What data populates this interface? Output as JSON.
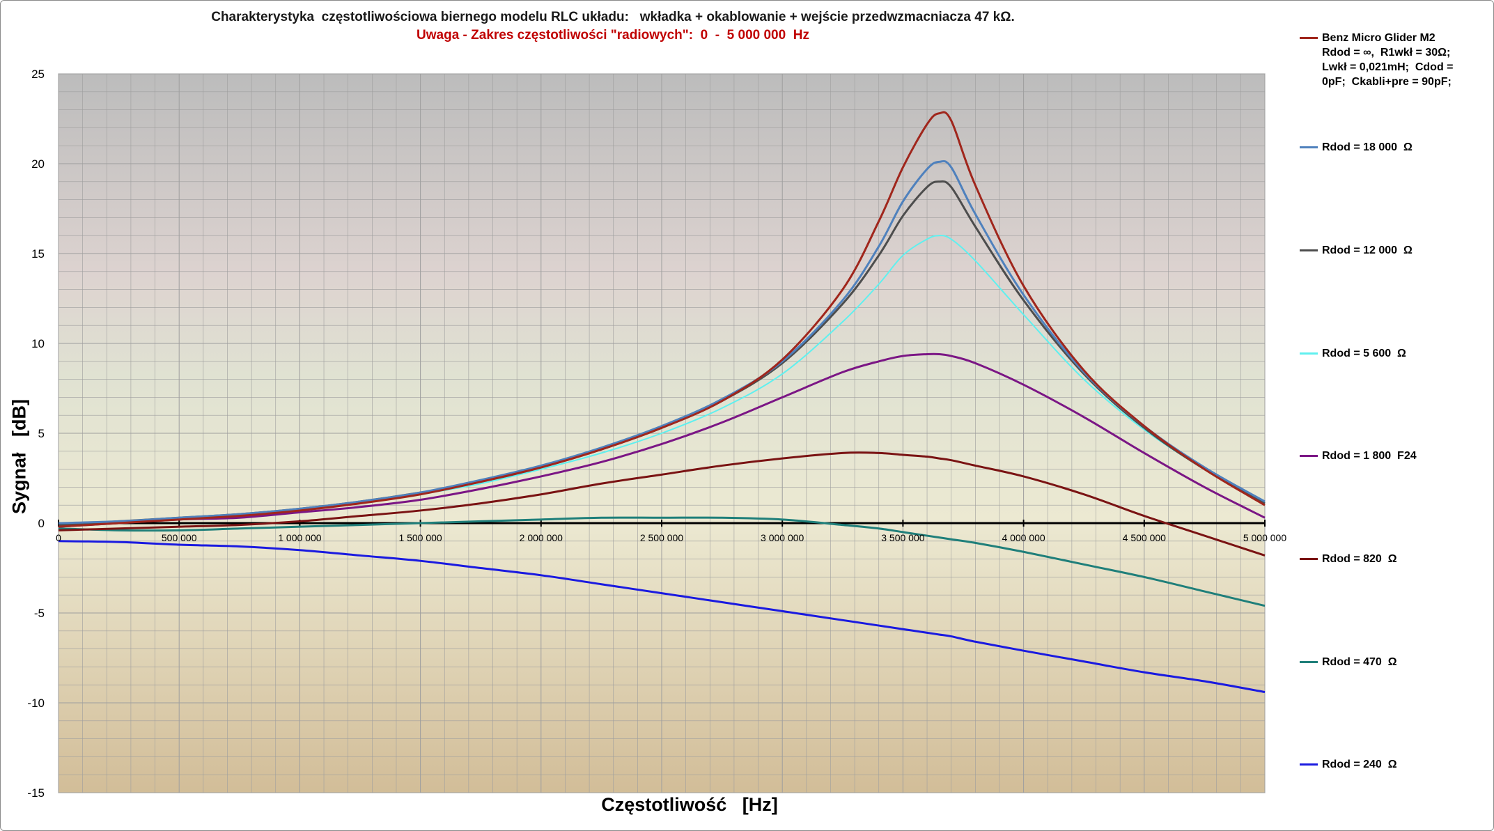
{
  "title": "Charakterystyka  częstotliwościowa biernego modelu RLC układu:   wkładka + okablowanie + wejście przedwzmacniacza 47 kΩ.",
  "subtitle": "Uwaga - Zakres częstotliwości \"radiowych\":  0  -  5 000 000  Hz",
  "chart_data": {
    "type": "line",
    "title": "Charakterystyka  częstotliwościowa biernego modelu RLC układu:   wkładka + okablowanie + wejście przedwzmacniacza 47 kΩ.",
    "subtitle": "Uwaga - Zakres częstotliwości \"radiowych\":  0  -  5 000 000  Hz",
    "xlabel": "Częstotliwość   [Hz]",
    "ylabel": "Sygnał   [dB]",
    "xlim": [
      0,
      5000000
    ],
    "ylim": [
      -15,
      25
    ],
    "x_ticks": [
      "0",
      "500 000",
      "1 000 000",
      "1 500 000",
      "2 000 000",
      "2 500 000",
      "3 000 000",
      "3 500 000",
      "4 000 000",
      "4 500 000",
      "5 000 000"
    ],
    "y_ticks": [
      "25",
      "20",
      "15",
      "10",
      "5",
      "0",
      "-5",
      "-10",
      "-15"
    ],
    "grid": true,
    "legend_position": "right",
    "x": [
      0,
      250000,
      500000,
      750000,
      1000000,
      1250000,
      1500000,
      1750000,
      2000000,
      2250000,
      2500000,
      2750000,
      3000000,
      3250000,
      3400000,
      3500000,
      3600000,
      3650000,
      3700000,
      3800000,
      4000000,
      4250000,
      4500000,
      4750000,
      5000000
    ],
    "series": [
      {
        "name": "Benz Micro Glider M2\nRdod = ∞,  R1wkł = 30Ω;\nLwkł = 0,021mH;  Cdod =\n0pF;  Ckabli+pre = 90pF;",
        "color": "#a0261c",
        "values": [
          -0.2,
          0.0,
          0.2,
          0.4,
          0.7,
          1.1,
          1.6,
          2.3,
          3.1,
          4.1,
          5.3,
          6.8,
          9.1,
          13.0,
          16.8,
          19.8,
          22.2,
          22.8,
          22.4,
          18.8,
          13.2,
          8.5,
          5.4,
          3.0,
          1.0
        ]
      },
      {
        "name": "Rdod = 18 000  Ω",
        "color": "#4f81bd",
        "values": [
          0.0,
          0.1,
          0.3,
          0.5,
          0.8,
          1.2,
          1.7,
          2.4,
          3.2,
          4.2,
          5.4,
          6.9,
          9.0,
          12.4,
          15.4,
          17.9,
          19.7,
          20.1,
          19.8,
          17.2,
          12.7,
          8.4,
          5.4,
          3.1,
          1.2
        ]
      },
      {
        "name": "Rdod = 12 000  Ω",
        "color": "#4d4d4d",
        "values": [
          -0.1,
          0.1,
          0.3,
          0.5,
          0.8,
          1.2,
          1.7,
          2.3,
          3.1,
          4.1,
          5.3,
          6.8,
          8.9,
          12.2,
          14.9,
          17.1,
          18.7,
          19.0,
          18.7,
          16.5,
          12.4,
          8.3,
          5.3,
          3.0,
          1.1
        ]
      },
      {
        "name": "Rdod = 5 600  Ω",
        "color": "#5ff0ef",
        "values": [
          -0.1,
          0.1,
          0.2,
          0.4,
          0.7,
          1.1,
          1.6,
          2.2,
          3.0,
          3.9,
          5.0,
          6.4,
          8.3,
          11.2,
          13.3,
          14.9,
          15.8,
          16.0,
          15.8,
          14.6,
          11.6,
          8.0,
          5.2,
          3.0,
          1.1
        ]
      },
      {
        "name": "Rdod = 1 800  F24",
        "color": "#7b1685",
        "values": [
          -0.2,
          0.0,
          0.2,
          0.3,
          0.6,
          0.9,
          1.3,
          1.9,
          2.6,
          3.4,
          4.4,
          5.6,
          7.0,
          8.4,
          9.0,
          9.3,
          9.4,
          9.4,
          9.3,
          8.9,
          7.7,
          5.9,
          3.9,
          2.0,
          0.3
        ]
      },
      {
        "name": "Rdod = 820  Ω",
        "color": "#7a1313",
        "values": [
          -0.4,
          -0.3,
          -0.2,
          -0.1,
          0.1,
          0.4,
          0.7,
          1.1,
          1.6,
          2.2,
          2.7,
          3.2,
          3.6,
          3.9,
          3.9,
          3.8,
          3.7,
          3.6,
          3.5,
          3.2,
          2.6,
          1.6,
          0.4,
          -0.7,
          -1.8
        ]
      },
      {
        "name": "Rdod = 470  Ω",
        "color": "#1f7f7a",
        "values": [
          -0.3,
          -0.4,
          -0.4,
          -0.3,
          -0.2,
          -0.1,
          0.0,
          0.1,
          0.2,
          0.3,
          0.3,
          0.3,
          0.2,
          -0.1,
          -0.3,
          -0.5,
          -0.7,
          -0.8,
          -0.9,
          -1.1,
          -1.6,
          -2.3,
          -3.0,
          -3.8,
          -4.6
        ]
      },
      {
        "name": "Rdod = 240  Ω",
        "color": "#1a1ae0",
        "values": [
          -1.0,
          -1.05,
          -1.2,
          -1.3,
          -1.5,
          -1.8,
          -2.1,
          -2.5,
          -2.9,
          -3.4,
          -3.9,
          -4.4,
          -4.9,
          -5.4,
          -5.7,
          -5.9,
          -6.1,
          -6.2,
          -6.3,
          -6.6,
          -7.1,
          -7.7,
          -8.3,
          -8.8,
          -9.4
        ]
      }
    ]
  }
}
